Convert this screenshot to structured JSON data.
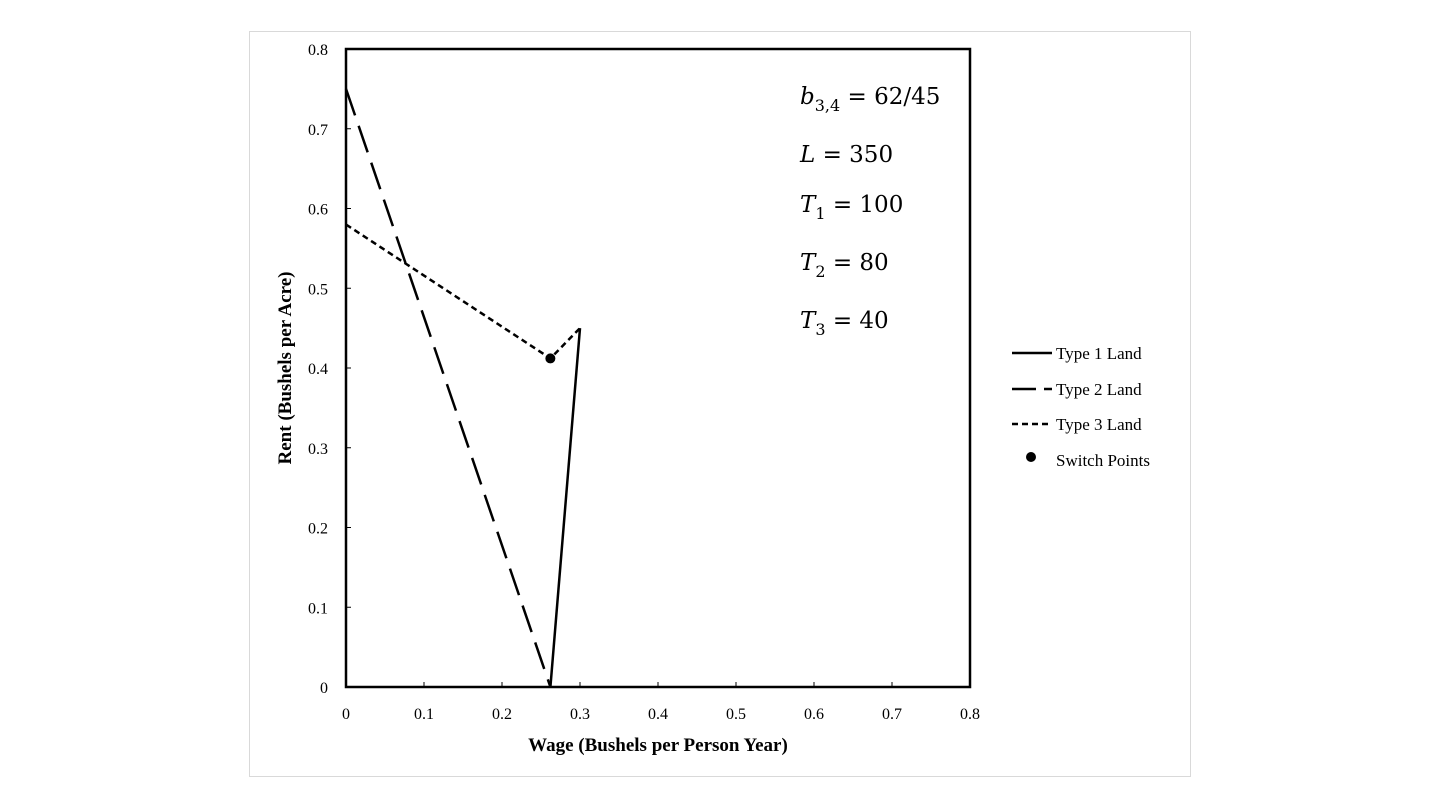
{
  "chart_data": {
    "type": "line",
    "xlabel": "Wage (Bushels per Person Year)",
    "ylabel": "Rent (Bushels per Acre)",
    "xlim": [
      0,
      0.8
    ],
    "ylim": [
      0,
      0.8
    ],
    "x_ticks": [
      "0",
      "0.1",
      "0.2",
      "0.3",
      "0.4",
      "0.5",
      "0.6",
      "0.7",
      "0.8"
    ],
    "y_ticks": [
      "0",
      "0.1",
      "0.2",
      "0.3",
      "0.4",
      "0.5",
      "0.6",
      "0.7",
      "0.8"
    ],
    "grid": false,
    "legend_position": "right",
    "series": [
      {
        "name": "Type 1 Land",
        "style": "solid",
        "color": "#000000",
        "points": [
          [
            0.262,
            0.0
          ],
          [
            0.3,
            0.45
          ]
        ]
      },
      {
        "name": "Type 2 Land",
        "style": "long-dash",
        "color": "#000000",
        "points": [
          [
            0.0,
            0.75
          ],
          [
            0.262,
            0.0
          ]
        ]
      },
      {
        "name": "Type 3 Land",
        "style": "short-dash",
        "color": "#000000",
        "points": [
          [
            0.0,
            0.58
          ],
          [
            0.262,
            0.412
          ],
          [
            0.3,
            0.45
          ]
        ]
      }
    ],
    "switch_points": {
      "name": "Switch Points",
      "points": [
        [
          0.262,
          0.412
        ]
      ]
    },
    "annotations": [
      {
        "var": "b",
        "sub": "3,4",
        "value": "= 62/45"
      },
      {
        "var": "L",
        "sub": "",
        "value": "= 350"
      },
      {
        "var": "T",
        "sub": "1",
        "value": "= 100"
      },
      {
        "var": "T",
        "sub": "2",
        "value": "= 80"
      },
      {
        "var": "T",
        "sub": "3",
        "value": "= 40"
      }
    ]
  }
}
